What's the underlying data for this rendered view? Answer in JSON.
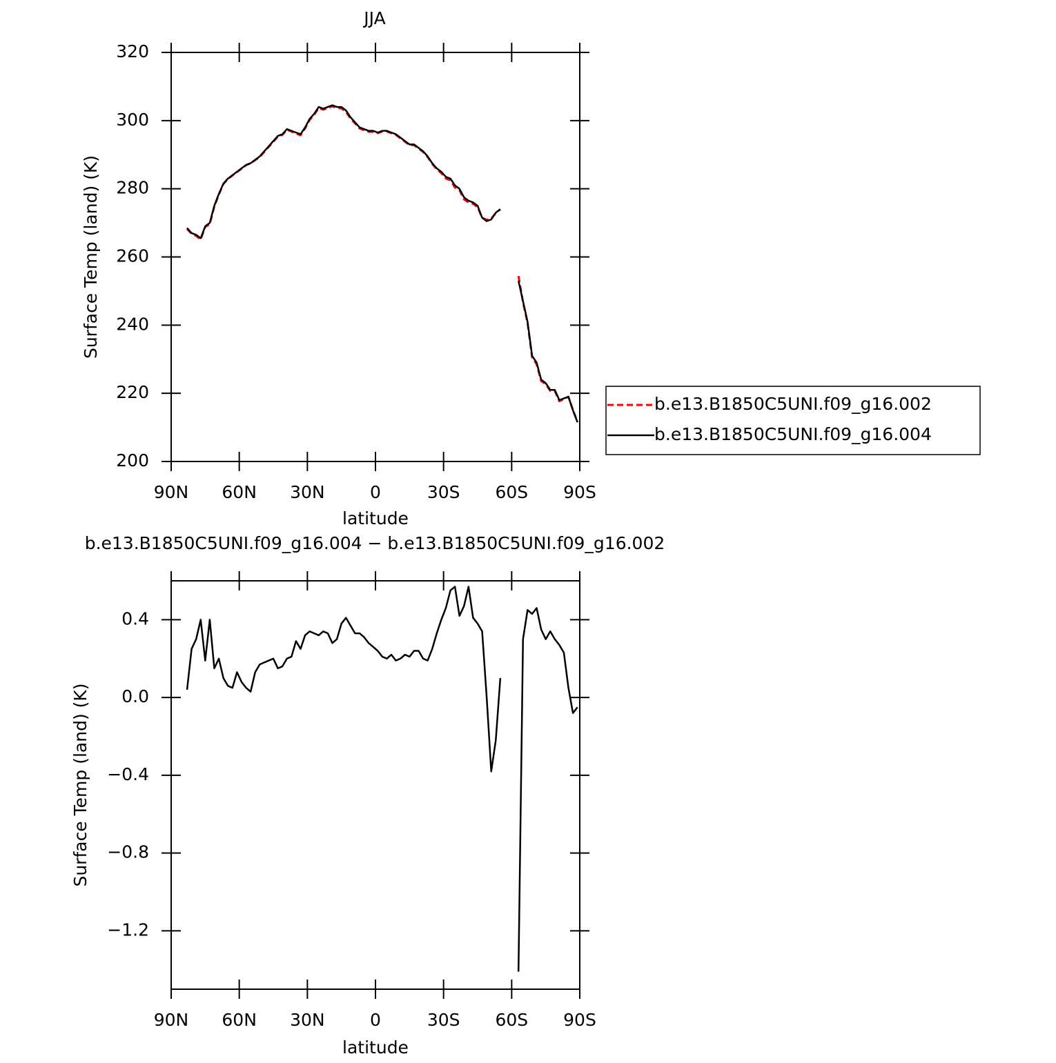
{
  "chart_data": [
    {
      "type": "line",
      "title": "JJA",
      "ylabel": "Surface Temp (land) (K)",
      "xlabel": "latitude",
      "x": [
        83,
        81,
        79,
        77,
        75,
        73,
        71,
        69,
        67,
        65,
        63,
        61,
        59,
        57,
        55,
        53,
        51,
        49,
        47,
        45,
        43,
        41,
        39,
        37,
        35,
        33,
        31,
        29,
        27,
        25,
        23,
        21,
        19,
        17,
        15,
        13,
        11,
        9,
        7,
        5,
        3,
        1,
        -1,
        -3,
        -5,
        -7,
        -9,
        -11,
        -13,
        -15,
        -17,
        -19,
        -21,
        -23,
        -25,
        -27,
        -29,
        -31,
        -33,
        -35,
        -37,
        -39,
        -41,
        -43,
        -45,
        -47,
        -49,
        -51,
        -53,
        -55,
        -59,
        -63,
        -65,
        -67,
        -69,
        -71,
        -73,
        -75,
        -77,
        -79,
        -81,
        -83,
        -85,
        -87,
        -89
      ],
      "xlim": [
        90,
        -90
      ],
      "xticks": [
        {
          "value": 90,
          "label": "90N"
        },
        {
          "value": 60,
          "label": "60N"
        },
        {
          "value": 30,
          "label": "30N"
        },
        0,
        {
          "value": -30,
          "label": "30S"
        },
        {
          "value": -60,
          "label": "60S"
        },
        {
          "value": -90,
          "label": "90S"
        }
      ],
      "ylim": [
        200,
        320
      ],
      "yticks": [
        200,
        220,
        240,
        260,
        280,
        300,
        320
      ],
      "legend": "right",
      "series": [
        {
          "name": "b.e13.B1850C5UNI.f09_g16.002",
          "color": "#ff0000",
          "linestyle": "dashed",
          "values": [
            268.2,
            266.8,
            266.2,
            265.1,
            268.8,
            269.6,
            274.8,
            278.3,
            281.4,
            282.9,
            283.9,
            284.9,
            285.9,
            286.9,
            287.5,
            288.4,
            289.3,
            290.8,
            292.3,
            293.8,
            295.3,
            295.8,
            297.3,
            296.8,
            296.2,
            295.7,
            297.7,
            300.2,
            301.7,
            303.7,
            303.2,
            303.7,
            304.2,
            303.7,
            303.6,
            302.6,
            300.6,
            299.2,
            297.7,
            297.2,
            296.7,
            296.7,
            296.3,
            296.8,
            296.8,
            296.3,
            295.8,
            294.8,
            293.8,
            292.8,
            292.8,
            291.8,
            290.8,
            289.3,
            287.3,
            285.7,
            284.6,
            283,
            282.5,
            280.4,
            279.6,
            276.9,
            276,
            275.6,
            274.6,
            271.5,
            270.9,
            271.2,
            272.9,
            274,
            null,
            254.4,
            246.7,
            240.6,
            230.6,
            228.5,
            223.6,
            222.7,
            220.7,
            220.7,
            217.7,
            218.3,
            219,
            215.1,
            211.6
          ]
        },
        {
          "name": "b.e13.B1850C5UNI.f09_g16.004",
          "color": "#000000",
          "linestyle": "solid",
          "values": [
            268.5,
            267,
            266.5,
            265.5,
            269,
            270,
            275,
            278.5,
            281.5,
            283,
            284,
            285,
            286,
            287,
            287.5,
            288.5,
            289.5,
            291,
            292.5,
            294,
            295.5,
            296,
            297.5,
            297,
            296.5,
            296,
            298,
            300.5,
            302,
            304,
            303.5,
            304,
            304.5,
            304,
            304,
            303,
            301,
            299.5,
            298,
            297.5,
            297,
            297,
            296.5,
            297,
            297,
            296.5,
            296,
            295,
            294,
            293,
            293,
            292,
            291,
            289.5,
            287.5,
            286,
            285,
            283.5,
            283,
            281,
            280,
            277.5,
            276.5,
            276,
            275,
            271.5,
            270.5,
            271,
            273,
            274,
            null,
            253,
            247,
            241,
            231,
            229,
            224,
            223,
            221,
            221,
            218,
            218.5,
            219,
            215,
            211.5
          ]
        }
      ]
    },
    {
      "type": "line",
      "title": "b.e13.B1850C5UNI.f09_g16.004 − b.e13.B1850C5UNI.f09_g16.002",
      "ylabel": "Surface Temp (land) (K)",
      "xlabel": "latitude",
      "x": [
        83,
        81,
        79,
        77,
        75,
        73,
        71,
        69,
        67,
        65,
        63,
        61,
        59,
        57,
        55,
        53,
        51,
        49,
        47,
        45,
        43,
        41,
        39,
        37,
        35,
        33,
        31,
        29,
        27,
        25,
        23,
        21,
        19,
        17,
        15,
        13,
        11,
        9,
        7,
        5,
        3,
        1,
        -1,
        -3,
        -5,
        -7,
        -9,
        -11,
        -13,
        -15,
        -17,
        -19,
        -21,
        -23,
        -25,
        -27,
        -29,
        -31,
        -33,
        -35,
        -37,
        -39,
        -41,
        -43,
        -45,
        -47,
        -49,
        -51,
        -53,
        -55,
        -59,
        -63,
        -65,
        -67,
        -69,
        -71,
        -73,
        -75,
        -77,
        -79,
        -81,
        -83,
        -85,
        -87,
        -89
      ],
      "xlim": [
        90,
        -90
      ],
      "xticks": [
        {
          "value": 90,
          "label": "90N"
        },
        {
          "value": 60,
          "label": "60N"
        },
        {
          "value": 30,
          "label": "30N"
        },
        0,
        {
          "value": -30,
          "label": "30S"
        },
        {
          "value": -60,
          "label": "60S"
        },
        {
          "value": -90,
          "label": "90S"
        }
      ],
      "ylim": [
        -1.5,
        0.6
      ],
      "yticks": [
        {
          "value": -1.2,
          "label": "−1.2"
        },
        {
          "value": -0.8,
          "label": "−0.8"
        },
        {
          "value": -0.4,
          "label": "−0.4"
        },
        {
          "value": 0,
          "label": "0.0"
        },
        0.4
      ],
      "series": [
        {
          "color": "#000000",
          "linestyle": "solid",
          "values": [
            0.04,
            0.25,
            0.3,
            0.4,
            0.19,
            0.4,
            0.15,
            0.2,
            0.1,
            0.06,
            0.05,
            0.13,
            0.08,
            0.05,
            0.03,
            0.13,
            0.17,
            0.18,
            0.19,
            0.2,
            0.15,
            0.16,
            0.2,
            0.21,
            0.29,
            0.25,
            0.32,
            0.34,
            0.33,
            0.32,
            0.34,
            0.33,
            0.28,
            0.3,
            0.38,
            0.41,
            0.37,
            0.33,
            0.33,
            0.31,
            0.28,
            0.26,
            0.24,
            0.21,
            0.2,
            0.22,
            0.19,
            0.2,
            0.22,
            0.21,
            0.24,
            0.24,
            0.2,
            0.19,
            0.25,
            0.33,
            0.4,
            0.46,
            0.55,
            0.57,
            0.42,
            0.47,
            0.57,
            0.41,
            0.38,
            0.34,
            0.0,
            -0.38,
            -0.22,
            0.1,
            null,
            -1.41,
            0.3,
            0.45,
            0.43,
            0.46,
            0.35,
            0.3,
            0.34,
            0.3,
            0.27,
            0.23,
            0.05,
            -0.08,
            -0.05
          ]
        }
      ]
    }
  ]
}
